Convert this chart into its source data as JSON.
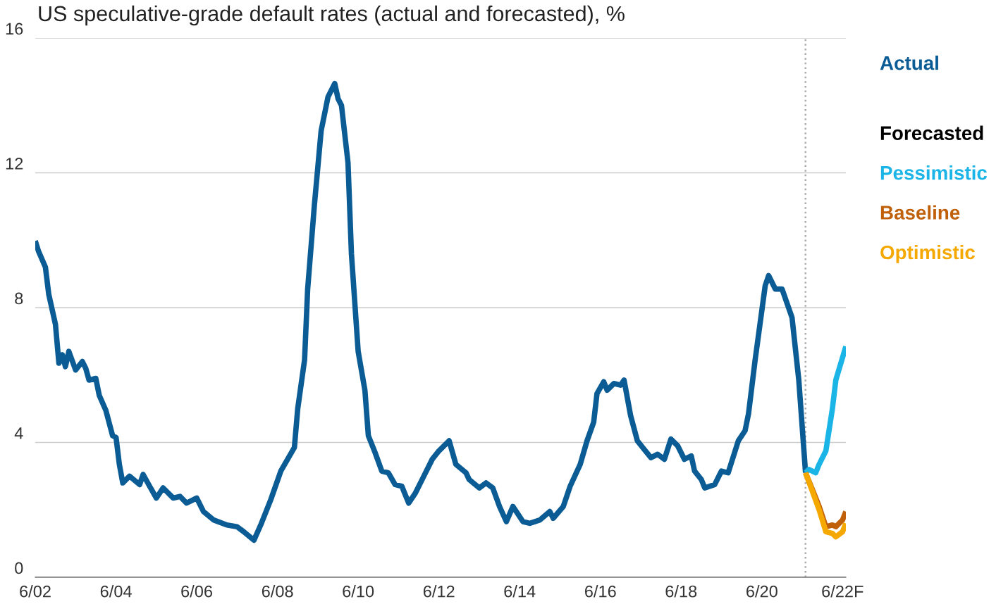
{
  "chart_data": {
    "type": "line",
    "title": "US speculative-grade default rates (actual and forecasted), %",
    "legend_title": "Forecasted",
    "legend": "right",
    "grid": "y",
    "marker": "none",
    "line_style": "solid",
    "ylim": [
      0,
      16
    ],
    "yticks": [
      0,
      4,
      8,
      12,
      16
    ],
    "xlim": [
      "2002-06",
      "2022-07"
    ],
    "xticks": [
      {
        "value": "2002-06",
        "label": "6/02"
      },
      {
        "value": "2004-06",
        "label": "6/04"
      },
      {
        "value": "2006-06",
        "label": "6/06"
      },
      {
        "value": "2008-06",
        "label": "6/08"
      },
      {
        "value": "2010-06",
        "label": "6/10"
      },
      {
        "value": "2012-06",
        "label": "6/12"
      },
      {
        "value": "2014-06",
        "label": "6/14"
      },
      {
        "value": "2016-06",
        "label": "6/16"
      },
      {
        "value": "2018-06",
        "label": "6/18"
      },
      {
        "value": "2020-06",
        "label": "6/20"
      },
      {
        "value": "2022-06",
        "label": "6/22F"
      }
    ],
    "ref_lines": [
      {
        "axis": "x",
        "value": "2021-07",
        "color": "#aaaaaa",
        "line_style": "dotted"
      }
    ],
    "series": [
      {
        "name": "Actual",
        "color": "#0b5c95",
        "x": [
          "2002-06",
          "2002-07",
          "2002-09",
          "2002-10",
          "2002-12",
          "2003-01",
          "2003-02",
          "2003-03",
          "2003-04",
          "2003-06",
          "2003-08",
          "2003-09",
          "2003-10",
          "2003-12",
          "2004-01",
          "2004-03",
          "2004-05",
          "2004-06",
          "2004-07",
          "2004-08",
          "2004-10",
          "2005-01",
          "2005-02",
          "2005-04",
          "2005-06",
          "2005-08",
          "2005-11",
          "2006-01",
          "2006-03",
          "2006-06",
          "2006-08",
          "2006-11",
          "2007-03",
          "2007-06",
          "2007-08",
          "2007-11",
          "2008-01",
          "2008-04",
          "2008-07",
          "2008-11",
          "2008-12",
          "2009-02",
          "2009-03",
          "2009-05",
          "2009-07",
          "2009-09",
          "2009-11",
          "2009-12",
          "2010-01",
          "2010-03",
          "2010-04",
          "2010-06",
          "2010-08",
          "2010-09",
          "2010-11",
          "2011-01",
          "2011-03",
          "2011-05",
          "2011-07",
          "2011-09",
          "2011-11",
          "2012-01",
          "2012-04",
          "2012-06",
          "2012-09",
          "2012-11",
          "2013-02",
          "2013-03",
          "2013-06",
          "2013-08",
          "2013-10",
          "2013-12",
          "2014-02",
          "2014-04",
          "2014-07",
          "2014-09",
          "2014-12",
          "2015-03",
          "2015-04",
          "2015-07",
          "2015-09",
          "2015-12",
          "2016-02",
          "2016-04",
          "2016-05",
          "2016-07",
          "2016-08",
          "2016-10",
          "2016-12",
          "2017-01",
          "2017-03",
          "2017-05",
          "2017-07",
          "2017-09",
          "2017-11",
          "2018-01",
          "2018-03",
          "2018-05",
          "2018-07",
          "2018-09",
          "2018-10",
          "2018-12",
          "2019-01",
          "2019-04",
          "2019-06",
          "2019-08",
          "2019-11",
          "2020-01",
          "2020-02",
          "2020-04",
          "2020-07",
          "2020-08",
          "2020-10",
          "2020-12",
          "2021-03",
          "2021-05",
          "2021-07"
        ],
        "values": [
          9.98,
          9.67,
          9.2,
          8.4,
          7.5,
          6.35,
          6.6,
          6.25,
          6.7,
          6.15,
          6.4,
          6.2,
          5.85,
          5.9,
          5.4,
          4.95,
          4.2,
          4.15,
          3.35,
          2.8,
          3.0,
          2.75,
          3.05,
          2.7,
          2.35,
          2.65,
          2.35,
          2.4,
          2.2,
          2.35,
          1.95,
          1.7,
          1.55,
          1.5,
          1.35,
          1.1,
          1.55,
          2.3,
          3.15,
          3.85,
          5.0,
          6.45,
          8.55,
          11.05,
          13.25,
          14.25,
          14.65,
          14.2,
          14.0,
          12.3,
          9.6,
          6.7,
          5.55,
          4.2,
          3.7,
          3.15,
          3.1,
          2.75,
          2.7,
          2.2,
          2.5,
          2.9,
          3.5,
          3.75,
          4.05,
          3.35,
          3.1,
          2.9,
          2.65,
          2.8,
          2.65,
          2.1,
          1.65,
          2.1,
          1.65,
          1.6,
          1.7,
          1.95,
          1.75,
          2.1,
          2.7,
          3.35,
          4.05,
          4.6,
          5.45,
          5.8,
          5.55,
          5.75,
          5.7,
          5.85,
          4.8,
          4.05,
          3.8,
          3.55,
          3.65,
          3.5,
          4.1,
          3.9,
          3.5,
          3.6,
          3.15,
          2.9,
          2.65,
          2.75,
          3.15,
          3.1,
          4.05,
          4.35,
          4.85,
          6.45,
          8.65,
          8.95,
          8.55,
          8.55,
          7.7,
          5.85,
          3.1
        ]
      },
      {
        "name": "Pessimistic",
        "color": "#1ab5e6",
        "x": [
          "2021-07",
          "2021-08",
          "2021-10",
          "2021-11",
          "2022-01",
          "2022-03",
          "2022-04",
          "2022-07"
        ],
        "values": [
          3.1,
          3.2,
          3.1,
          3.35,
          3.75,
          5.0,
          5.85,
          6.85
        ]
      },
      {
        "name": "Baseline",
        "color": "#c0600b",
        "x": [
          "2021-07",
          "2021-09",
          "2021-11",
          "2022-01",
          "2022-03",
          "2022-04",
          "2022-06",
          "2022-07"
        ],
        "values": [
          3.1,
          2.6,
          2.1,
          1.5,
          1.55,
          1.5,
          1.7,
          1.95
        ]
      },
      {
        "name": "Optimistic",
        "color": "#f5a800",
        "x": [
          "2021-07",
          "2021-09",
          "2021-11",
          "2022-01",
          "2022-03",
          "2022-04",
          "2022-06",
          "2022-07"
        ],
        "values": [
          3.1,
          2.55,
          2.0,
          1.35,
          1.3,
          1.2,
          1.35,
          1.6
        ]
      }
    ]
  }
}
